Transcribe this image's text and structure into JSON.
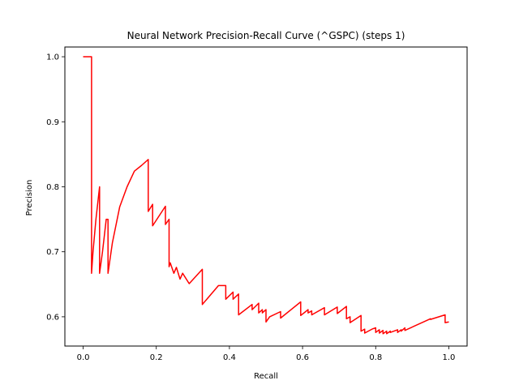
{
  "chart_data": {
    "type": "line",
    "title": "Neural Network Precision-Recall Curve (^GSPC) (steps 1)",
    "xlabel": "Recall",
    "ylabel": "Precision",
    "xlim": [
      -0.05,
      1.05
    ],
    "ylim": [
      0.555,
      1.015
    ],
    "xticks": [
      0.0,
      0.2,
      0.4,
      0.6,
      0.8,
      1.0
    ],
    "xtick_labels": [
      "0.0",
      "0.2",
      "0.4",
      "0.6",
      "0.8",
      "1.0"
    ],
    "yticks": [
      0.6,
      0.7,
      0.8,
      0.9,
      1.0
    ],
    "ytick_labels": [
      "0.6",
      "0.7",
      "0.8",
      "0.9",
      "1.0"
    ],
    "grid": false,
    "legend": false,
    "series": [
      {
        "color": "#ff0000",
        "x": [
          0.0,
          0.023,
          0.023,
          0.027,
          0.035,
          0.045,
          0.045,
          0.053,
          0.063,
          0.068,
          0.068,
          0.08,
          0.1,
          0.12,
          0.14,
          0.16,
          0.178,
          0.178,
          0.19,
          0.19,
          0.225,
          0.225,
          0.235,
          0.235,
          0.238,
          0.238,
          0.248,
          0.248,
          0.255,
          0.255,
          0.265,
          0.265,
          0.272,
          0.272,
          0.29,
          0.29,
          0.326,
          0.326,
          0.37,
          0.39,
          0.39,
          0.41,
          0.41,
          0.425,
          0.425,
          0.462,
          0.462,
          0.48,
          0.48,
          0.49,
          0.49,
          0.5,
          0.5,
          0.51,
          0.51,
          0.54,
          0.54,
          0.595,
          0.595,
          0.615,
          0.615,
          0.625,
          0.625,
          0.66,
          0.66,
          0.695,
          0.695,
          0.72,
          0.72,
          0.73,
          0.73,
          0.76,
          0.76,
          0.77,
          0.77,
          0.79,
          0.8,
          0.8,
          0.81,
          0.81,
          0.82,
          0.82,
          0.83,
          0.83,
          0.84,
          0.84,
          0.86,
          0.86,
          0.87,
          0.87,
          0.88,
          0.88,
          0.95,
          0.95,
          0.99,
          0.99,
          1.0
        ],
        "y": [
          1.0,
          1.0,
          0.667,
          0.7,
          0.75,
          0.8,
          0.667,
          0.7,
          0.75,
          0.75,
          0.667,
          0.714,
          0.769,
          0.8,
          0.824,
          0.833,
          0.842,
          0.762,
          0.773,
          0.74,
          0.77,
          0.742,
          0.75,
          0.677,
          0.683,
          0.683,
          0.667,
          0.667,
          0.676,
          0.676,
          0.658,
          0.658,
          0.667,
          0.667,
          0.651,
          0.651,
          0.673,
          0.619,
          0.648,
          0.648,
          0.627,
          0.638,
          0.627,
          0.635,
          0.603,
          0.619,
          0.611,
          0.621,
          0.606,
          0.611,
          0.606,
          0.611,
          0.592,
          0.6,
          0.6,
          0.608,
          0.598,
          0.623,
          0.602,
          0.611,
          0.606,
          0.609,
          0.603,
          0.614,
          0.603,
          0.615,
          0.605,
          0.616,
          0.597,
          0.6,
          0.591,
          0.602,
          0.578,
          0.581,
          0.575,
          0.581,
          0.583,
          0.576,
          0.58,
          0.575,
          0.579,
          0.574,
          0.578,
          0.574,
          0.578,
          0.576,
          0.58,
          0.576,
          0.58,
          0.578,
          0.583,
          0.579,
          0.597,
          0.596,
          0.603,
          0.591,
          0.592
        ]
      }
    ]
  }
}
